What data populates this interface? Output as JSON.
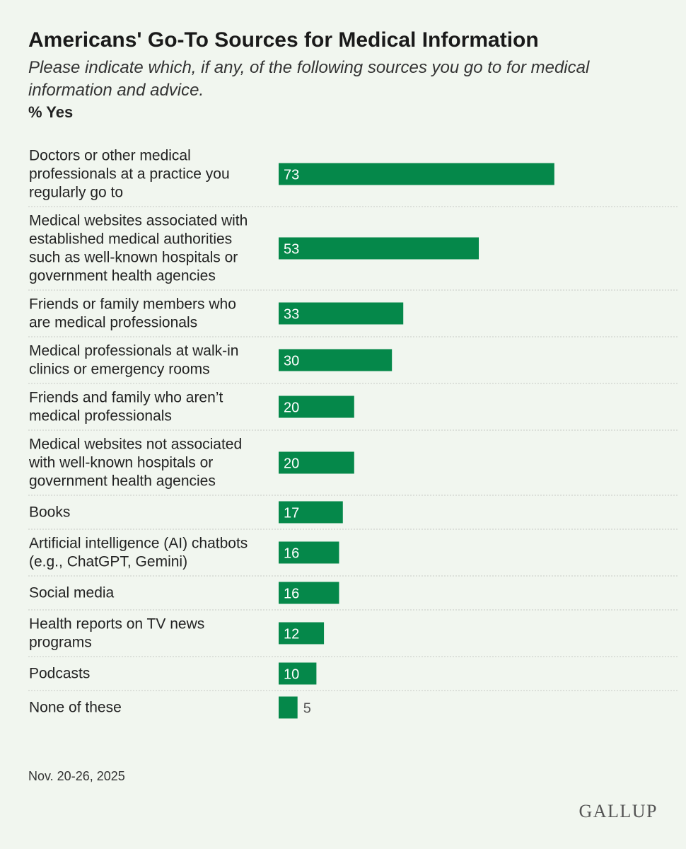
{
  "header": {
    "title": "Americans' Go-To Sources for Medical Information",
    "subtitle": "Please indicate which, if any, of the following sources you go to for medical information and advice.",
    "measure": "% Yes"
  },
  "footer": {
    "date_note": "Nov. 20-26, 2025",
    "brand": "GALLUP"
  },
  "colors": {
    "bar": "#05884a",
    "bar_label_inside": "#ffffff",
    "bar_label_outside": "#555555",
    "divider": "#c6cac4",
    "background": "#f1f6ef"
  },
  "chart_data": {
    "type": "bar",
    "orientation": "horizontal",
    "title": "Americans' Go-To Sources for Medical Information",
    "subtitle": "Please indicate which, if any, of the following sources you go to for medical information and advice.",
    "xlabel": "% Yes",
    "ylabel": "",
    "xlim": [
      0,
      100
    ],
    "grid": false,
    "legend": "none",
    "categories": [
      [
        "Doctors or other medical",
        "professionals at a practice you",
        "regularly go to"
      ],
      [
        "Medical websites associated with",
        "established medical authorities",
        "such as well-known hospitals or",
        "government health agencies"
      ],
      [
        "Friends or family members who",
        "are medical professionals"
      ],
      [
        "Medical professionals at walk-in",
        "clinics or emergency rooms"
      ],
      [
        "Friends and family who aren’t",
        "medical professionals"
      ],
      [
        "Medical websites not associated",
        "with well-known hospitals or",
        "government health agencies"
      ],
      [
        "Books"
      ],
      [
        "Artificial intelligence (AI) chatbots",
        "(e.g., ChatGPT, Gemini)"
      ],
      [
        "Social media"
      ],
      [
        "Health reports on TV news",
        "programs"
      ],
      [
        "Podcasts"
      ],
      [
        "None of these"
      ]
    ],
    "values": [
      73,
      53,
      33,
      30,
      20,
      20,
      17,
      16,
      16,
      12,
      10,
      5
    ]
  }
}
